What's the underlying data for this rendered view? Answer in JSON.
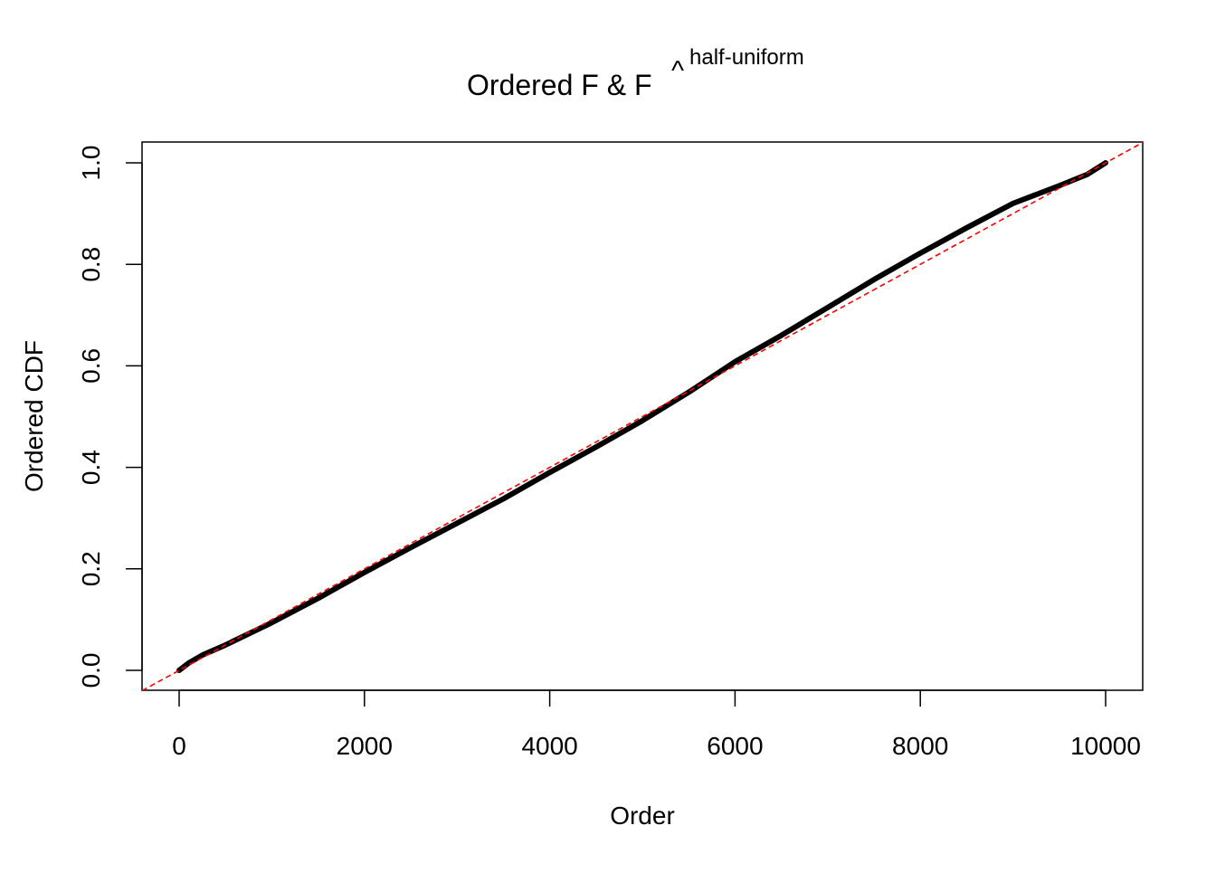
{
  "chart_data": {
    "type": "line",
    "title": {
      "main": "Ordered F & ",
      "hat_symbol": "F",
      "hat": "^",
      "superscript": "half-uniform"
    },
    "xlabel": "Order",
    "ylabel": "Ordered CDF",
    "xlim": [
      -400,
      10400
    ],
    "ylim": [
      -0.04,
      1.04
    ],
    "x_ticks": [
      0,
      2000,
      4000,
      6000,
      8000,
      10000
    ],
    "x_tick_labels": [
      "0",
      "2000",
      "4000",
      "6000",
      "8000",
      "10000"
    ],
    "y_ticks": [
      0,
      0.2,
      0.4,
      0.6,
      0.8,
      1.0
    ],
    "y_tick_labels": [
      "0.0",
      "0.2",
      "0.4",
      "0.6",
      "0.8",
      "1.0"
    ],
    "grid": false,
    "series": [
      {
        "style": "solid-thick",
        "color": "#000000",
        "x": [
          0,
          100,
          250,
          500,
          1000,
          1500,
          2000,
          2500,
          3000,
          3500,
          4000,
          4500,
          5000,
          5500,
          6000,
          6500,
          7000,
          7500,
          8000,
          8500,
          9000,
          9500,
          9800,
          10000
        ],
        "y": [
          0.0,
          0.014,
          0.03,
          0.05,
          0.094,
          0.142,
          0.193,
          0.242,
          0.29,
          0.338,
          0.39,
          0.44,
          0.492,
          0.548,
          0.608,
          0.66,
          0.715,
          0.77,
          0.822,
          0.872,
          0.92,
          0.955,
          0.977,
          1.0
        ]
      },
      {
        "style": "dashed-reference-line",
        "color": "#ff0000",
        "intercept": 0,
        "slope": 0.0001
      }
    ]
  }
}
